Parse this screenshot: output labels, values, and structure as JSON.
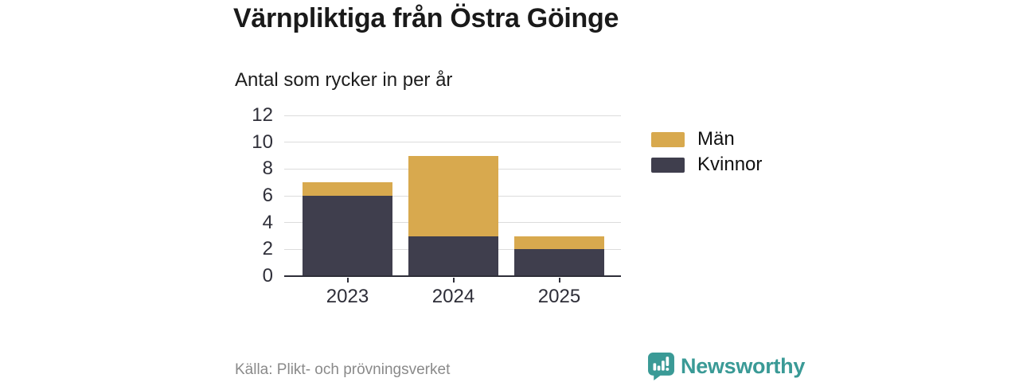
{
  "header": {
    "title": "Värnpliktiga från Östra Göinge",
    "subtitle": "Antal som rycker in per år"
  },
  "chart_data": {
    "type": "bar",
    "stacked": true,
    "title": "Värnpliktiga från Östra Göinge",
    "subtitle": "Antal som rycker in per år",
    "categories": [
      "2023",
      "2024",
      "2025"
    ],
    "series": [
      {
        "name": "Kvinnor",
        "color": "#3f3e4d",
        "values": [
          6,
          3,
          2
        ]
      },
      {
        "name": "Män",
        "color": "#d8a94e",
        "values": [
          1,
          6,
          1
        ]
      }
    ],
    "totals": [
      7,
      9,
      3
    ],
    "xlabel": "",
    "ylabel": "",
    "ylim": [
      0,
      12
    ],
    "yticks": [
      0,
      2,
      4,
      6,
      8,
      10,
      12
    ],
    "grid": true,
    "legend_position": "right",
    "source": "Källa: Plikt- och prövningsverket"
  },
  "legend": {
    "items": [
      {
        "label": "Män",
        "color": "#d8a94e"
      },
      {
        "label": "Kvinnor",
        "color": "#3f3e4d"
      }
    ]
  },
  "footer": {
    "source": "Källa: Plikt- och prövningsverket",
    "brand": "Newsworthy",
    "brand_color": "#3a9a96"
  }
}
